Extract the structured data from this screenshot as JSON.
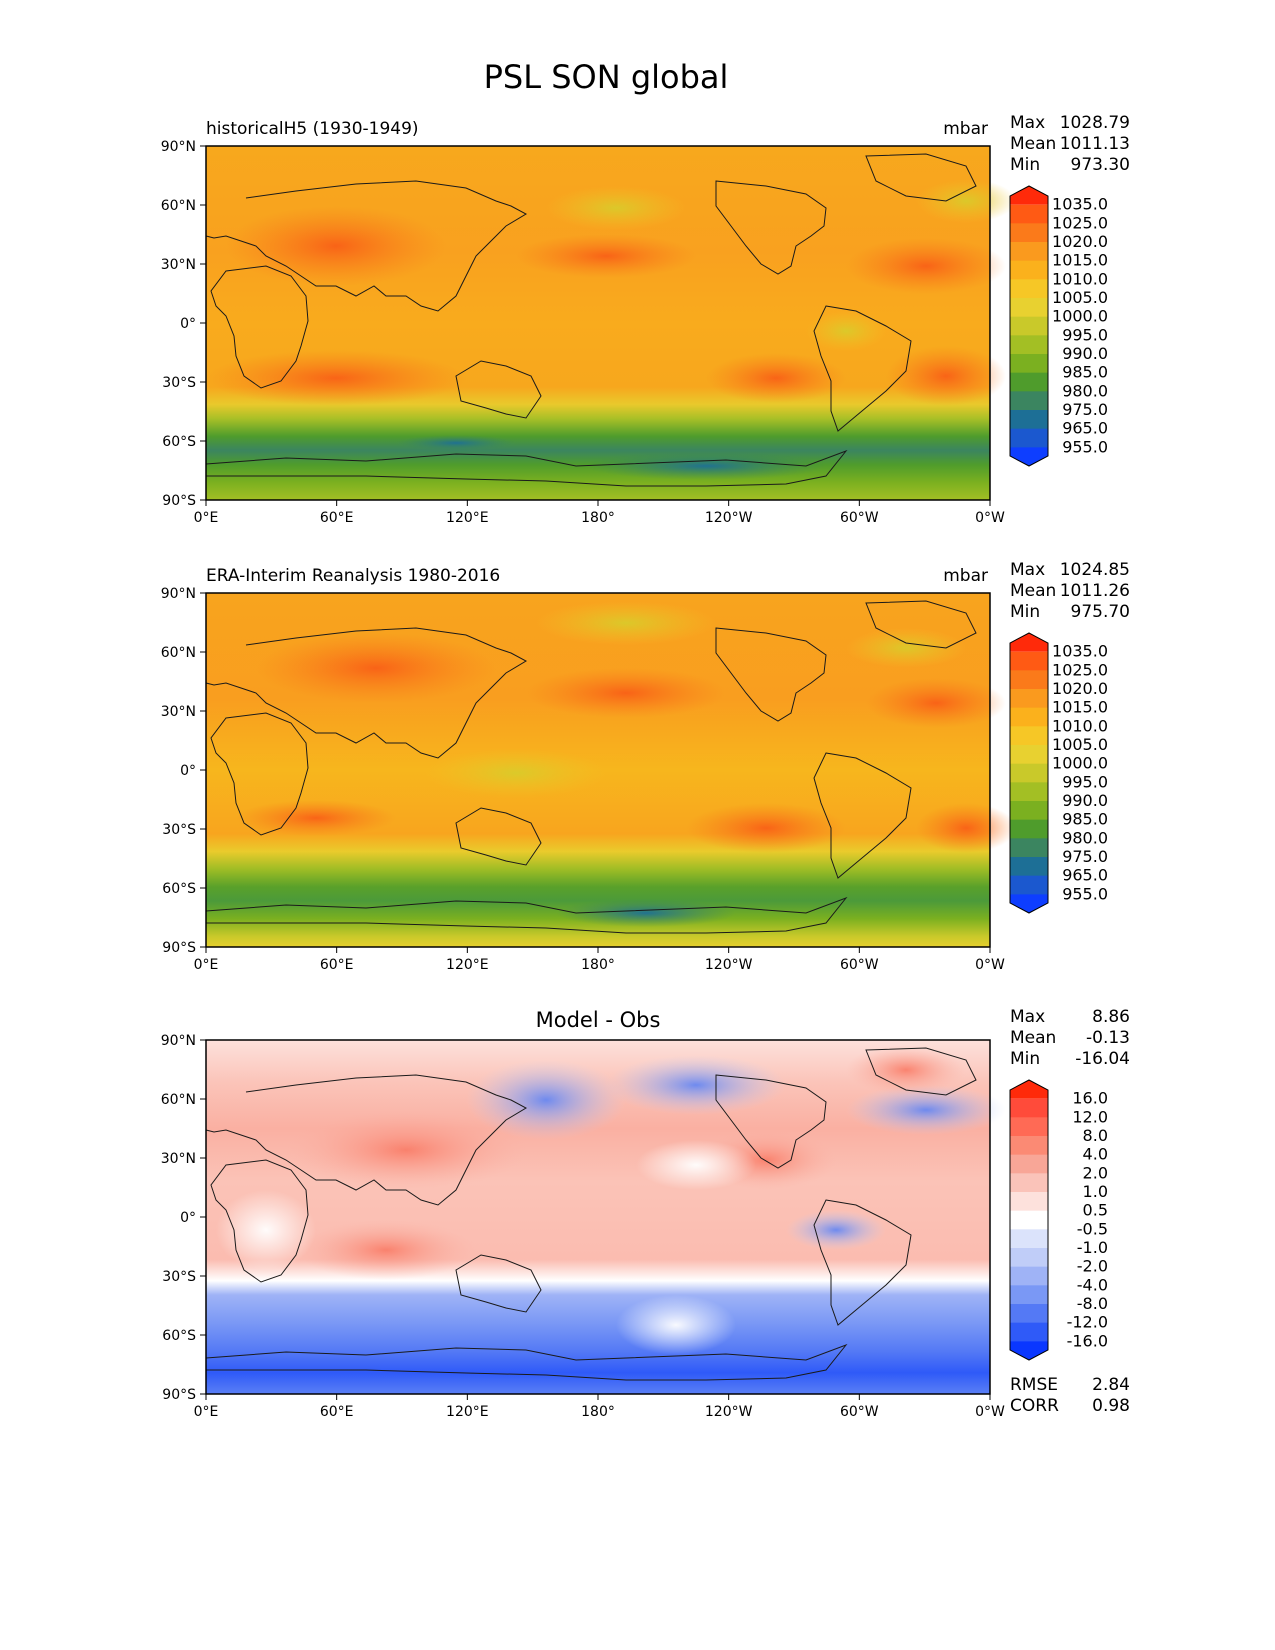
{
  "chart_data": {
    "type": "heatmap",
    "title": "PSL SON global",
    "x_ticks": [
      "0°E",
      "60°E",
      "120°E",
      "180°",
      "120°W",
      "60°W",
      "0°W"
    ],
    "y_ticks": [
      "90°N",
      "60°N",
      "30°N",
      "0°",
      "30°S",
      "60°S",
      "90°S"
    ],
    "xlim": [
      0,
      360
    ],
    "ylim": [
      -90,
      90
    ],
    "panels": [
      {
        "id": "model",
        "left_title": "historicalH5 (1930-1949)",
        "center_title": "",
        "units": "mbar",
        "stats": [
          {
            "label": "Max",
            "value": "1028.79"
          },
          {
            "label": "Mean",
            "value": "1011.13"
          },
          {
            "label": "Min",
            "value": "973.30"
          }
        ],
        "colorbar": {
          "labels": [
            "1035.0",
            "1025.0",
            "1020.0",
            "1015.0",
            "1010.0",
            "1005.0",
            "1000.0",
            "995.0",
            "990.0",
            "985.0",
            "980.0",
            "975.0",
            "965.0",
            "955.0"
          ],
          "colors": [
            "#ff2a0a",
            "#ff5a14",
            "#fb7a1a",
            "#fa9a1e",
            "#fbb11c",
            "#f6c726",
            "#e8d130",
            "#c9c92a",
            "#a3bf24",
            "#7bb020",
            "#4f9c2c",
            "#3b8560",
            "#1d6f96",
            "#1b58cf",
            "#0e3eff"
          ],
          "extend": "both"
        },
        "footer_stats": []
      },
      {
        "id": "obs",
        "left_title": "ERA-Interim Reanalysis 1980-2016",
        "center_title": "",
        "units": "mbar",
        "stats": [
          {
            "label": "Max",
            "value": "1024.85"
          },
          {
            "label": "Mean",
            "value": "1011.26"
          },
          {
            "label": "Min",
            "value": "975.70"
          }
        ],
        "colorbar": {
          "labels": [
            "1035.0",
            "1025.0",
            "1020.0",
            "1015.0",
            "1010.0",
            "1005.0",
            "1000.0",
            "995.0",
            "990.0",
            "985.0",
            "980.0",
            "975.0",
            "965.0",
            "955.0"
          ],
          "colors": [
            "#ff2a0a",
            "#ff5a14",
            "#fb7a1a",
            "#fa9a1e",
            "#fbb11c",
            "#f6c726",
            "#e8d130",
            "#c9c92a",
            "#a3bf24",
            "#7bb020",
            "#4f9c2c",
            "#3b8560",
            "#1d6f96",
            "#1b58cf",
            "#0e3eff"
          ],
          "extend": "both"
        },
        "footer_stats": []
      },
      {
        "id": "diff",
        "left_title": "",
        "center_title": "Model - Obs",
        "units": "",
        "stats": [
          {
            "label": "Max",
            "value": "8.86"
          },
          {
            "label": "Mean",
            "value": "-0.13"
          },
          {
            "label": "Min",
            "value": "-16.04"
          }
        ],
        "colorbar": {
          "labels": [
            "16.0",
            "12.0",
            "8.0",
            "4.0",
            "2.0",
            "1.0",
            "0.5",
            "-0.5",
            "-1.0",
            "-2.0",
            "-4.0",
            "-8.0",
            "-12.0",
            "-16.0"
          ],
          "colors": [
            "#ff2a0a",
            "#ff4b3a",
            "#ff6a55",
            "#fb8a74",
            "#f8a697",
            "#fac3b9",
            "#fde1dc",
            "#ffffff",
            "#dbe3fb",
            "#c0cdf8",
            "#9fb3f6",
            "#7a98f5",
            "#5479f5",
            "#2f5af8",
            "#0a37ff"
          ],
          "extend": "both"
        },
        "footer_stats": [
          {
            "label": "RMSE",
            "value": "2.84"
          },
          {
            "label": "CORR",
            "value": "0.98"
          }
        ]
      }
    ]
  }
}
